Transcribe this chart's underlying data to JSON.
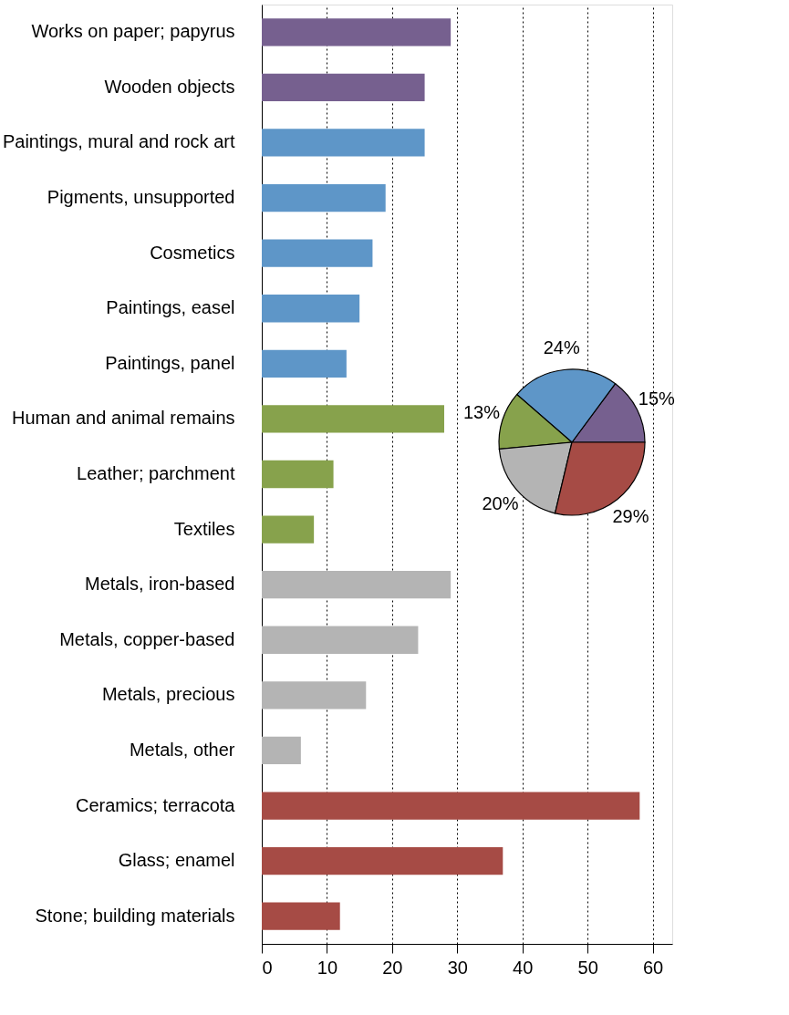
{
  "chart_data": [
    {
      "type": "bar",
      "orientation": "horizontal",
      "categories": [
        "Works on paper; papyrus",
        "Wooden objects",
        "Paintings, mural and rock art",
        "Pigments, unsupported",
        "Cosmetics",
        "Paintings, easel",
        "Paintings, panel",
        "Human and animal remains",
        "Leather; parchment",
        "Textiles",
        "Metals, iron-based",
        "Metals, copper-based",
        "Metals, precious",
        "Metals, other",
        "Ceramics; terracota",
        "Glass; enamel",
        "Stone; building materials"
      ],
      "values": [
        29,
        25,
        25,
        19,
        17,
        15,
        13,
        28,
        11,
        8,
        29,
        24,
        16,
        6,
        58,
        37,
        12
      ],
      "colors": [
        "#76608f",
        "#76608f",
        "#5e96c8",
        "#5e96c8",
        "#5e96c8",
        "#5e96c8",
        "#5e96c8",
        "#87a24c",
        "#87a24c",
        "#87a24c",
        "#b4b4b4",
        "#b4b4b4",
        "#b4b4b4",
        "#b4b4b4",
        "#a64b45",
        "#a64b45",
        "#a64b45"
      ],
      "xlim": [
        0,
        63
      ],
      "xticks": [
        0,
        10,
        20,
        30,
        40,
        50,
        60
      ],
      "grid": "x",
      "line_style": "dotted"
    },
    {
      "type": "pie",
      "categories": [
        null,
        null,
        null,
        null,
        null
      ],
      "values": [
        15,
        24,
        13,
        20,
        29
      ],
      "colors": [
        "#76608f",
        "#5e96c8",
        "#87a24c",
        "#b4b4b4",
        "#a64b45"
      ],
      "value_labels": [
        "15%",
        "24%",
        "13%",
        "20%",
        "29%"
      ]
    }
  ]
}
